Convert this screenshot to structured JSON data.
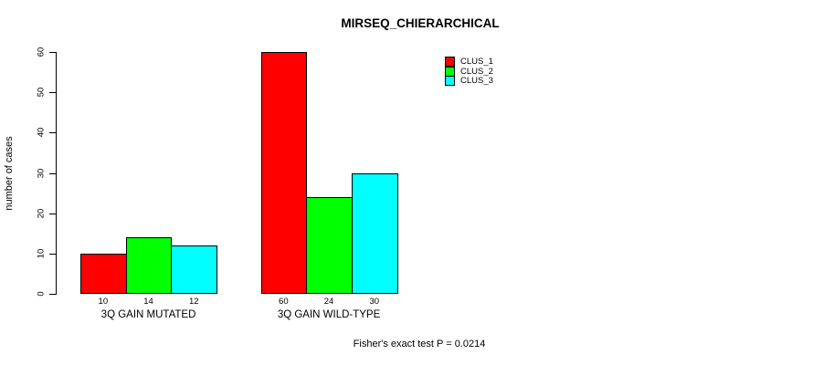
{
  "title": "MIRSEQ_CHIERARCHICAL",
  "chart_data": {
    "type": "bar",
    "title": "MIRSEQ_CHIERARCHICAL",
    "xlabel": "",
    "ylabel": "number of cases",
    "ylim": [
      0,
      60
    ],
    "yticks": [
      0,
      10,
      20,
      30,
      40,
      50,
      60
    ],
    "grid": false,
    "legend_position": "top-right",
    "categories": [
      "3Q GAIN MUTATED",
      "3Q GAIN WILD-TYPE"
    ],
    "series": [
      {
        "name": "CLUS_1",
        "color": "#FF0000",
        "values": [
          10,
          60
        ]
      },
      {
        "name": "CLUS_2",
        "color": "#00FF00",
        "values": [
          14,
          24
        ]
      },
      {
        "name": "CLUS_3",
        "color": "#00FFFF",
        "values": [
          12,
          30
        ]
      }
    ],
    "bar_value_labels": [
      [
        "10",
        "14",
        "12"
      ],
      [
        "60",
        "24",
        "30"
      ]
    ],
    "annotation": "Fisher's exact test P = 0.0214"
  }
}
